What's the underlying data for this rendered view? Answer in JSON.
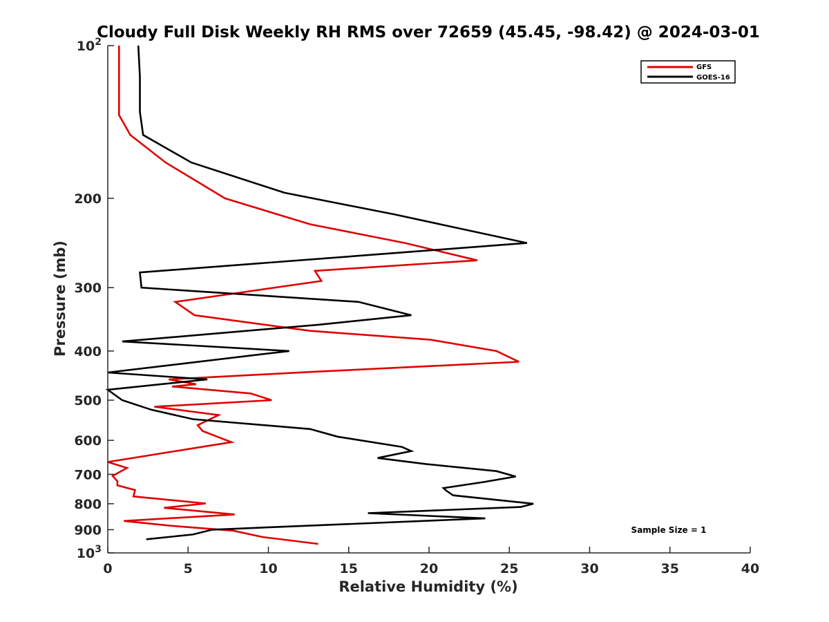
{
  "chart_data": {
    "type": "line",
    "title": "Cloudy Full Disk Weekly RH RMS over 72659 (45.45, -98.42) @ 2024-03-01",
    "xlabel": "Relative Humidity (%)",
    "ylabel": "Pressure (mb)",
    "xlim": [
      0,
      40
    ],
    "ylim": [
      100,
      1000
    ],
    "y_scale": "log",
    "y_reversed": true,
    "grid": false,
    "legend_position": "top-right",
    "x_ticks": [
      0,
      5,
      10,
      15,
      20,
      25,
      30,
      35,
      40
    ],
    "x_tick_labels": [
      "0",
      "5",
      "10",
      "15",
      "20",
      "25",
      "30",
      "35",
      "40"
    ],
    "y_ticks": [
      100,
      200,
      300,
      400,
      500,
      600,
      700,
      800,
      900,
      1000
    ],
    "y_tick_labels": [
      {
        "base": "10",
        "exp": "2"
      },
      {
        "base": "200",
        "exp": ""
      },
      {
        "base": "300",
        "exp": ""
      },
      {
        "base": "400",
        "exp": ""
      },
      {
        "base": "500",
        "exp": ""
      },
      {
        "base": "600",
        "exp": ""
      },
      {
        "base": "700",
        "exp": ""
      },
      {
        "base": "800",
        "exp": ""
      },
      {
        "base": "900",
        "exp": ""
      },
      {
        "base": "10",
        "exp": "3"
      }
    ],
    "annotation": "Sample Size = 1",
    "series": [
      {
        "name": "GFS",
        "color": "#e00000",
        "x": [
          0.7,
          0.7,
          0.7,
          1.4,
          3.6,
          7.3,
          12.6,
          18.5,
          23.0,
          12.9,
          13.3,
          4.2,
          5.4,
          12.6,
          20.1,
          24.2,
          25.6,
          12.5,
          3.8,
          5.5,
          4.0,
          8.9,
          10.2,
          2.9,
          6.9,
          5.6,
          5.9,
          7.7,
          4.9,
          0.0,
          1.2,
          0.3,
          0.6,
          0.6,
          1.7,
          1.6,
          6.1,
          3.5,
          7.9,
          1.0,
          3.9,
          7.8,
          9.6,
          13.1
        ],
        "y": [
          100,
          125,
          137,
          150,
          170,
          200,
          225,
          245,
          265,
          278,
          291,
          320,
          340,
          365,
          380,
          400,
          420,
          440,
          455,
          465,
          470,
          485,
          500,
          515,
          535,
          560,
          575,
          605,
          625,
          662,
          680,
          705,
          722,
          736,
          752,
          774,
          799,
          815,
          840,
          865,
          884,
          904,
          930,
          960
        ]
      },
      {
        "name": "GOES-16",
        "color": "#000000",
        "x": [
          1.9,
          2.0,
          2.0,
          2.2,
          5.2,
          11.0,
          17.8,
          26.1,
          2.0,
          2.1,
          15.6,
          18.9,
          13.1,
          0.9,
          11.3,
          0.0,
          6.2,
          0.0,
          0.9,
          2.7,
          5.3,
          12.6,
          14.3,
          18.3,
          18.9,
          16.8,
          19.8,
          24.2,
          25.4,
          23.4,
          20.9,
          21.1,
          21.5,
          26.5,
          25.7,
          16.2,
          23.5,
          6.5,
          5.3,
          2.4
        ],
        "y": [
          100,
          115,
          135,
          150,
          170,
          195,
          215,
          245,
          280,
          300,
          320,
          340,
          355,
          383,
          400,
          441,
          455,
          477,
          500,
          522,
          545,
          570,
          590,
          618,
          630,
          650,
          668,
          690,
          707,
          725,
          745,
          755,
          770,
          800,
          812,
          835,
          855,
          900,
          920,
          940
        ]
      }
    ]
  }
}
